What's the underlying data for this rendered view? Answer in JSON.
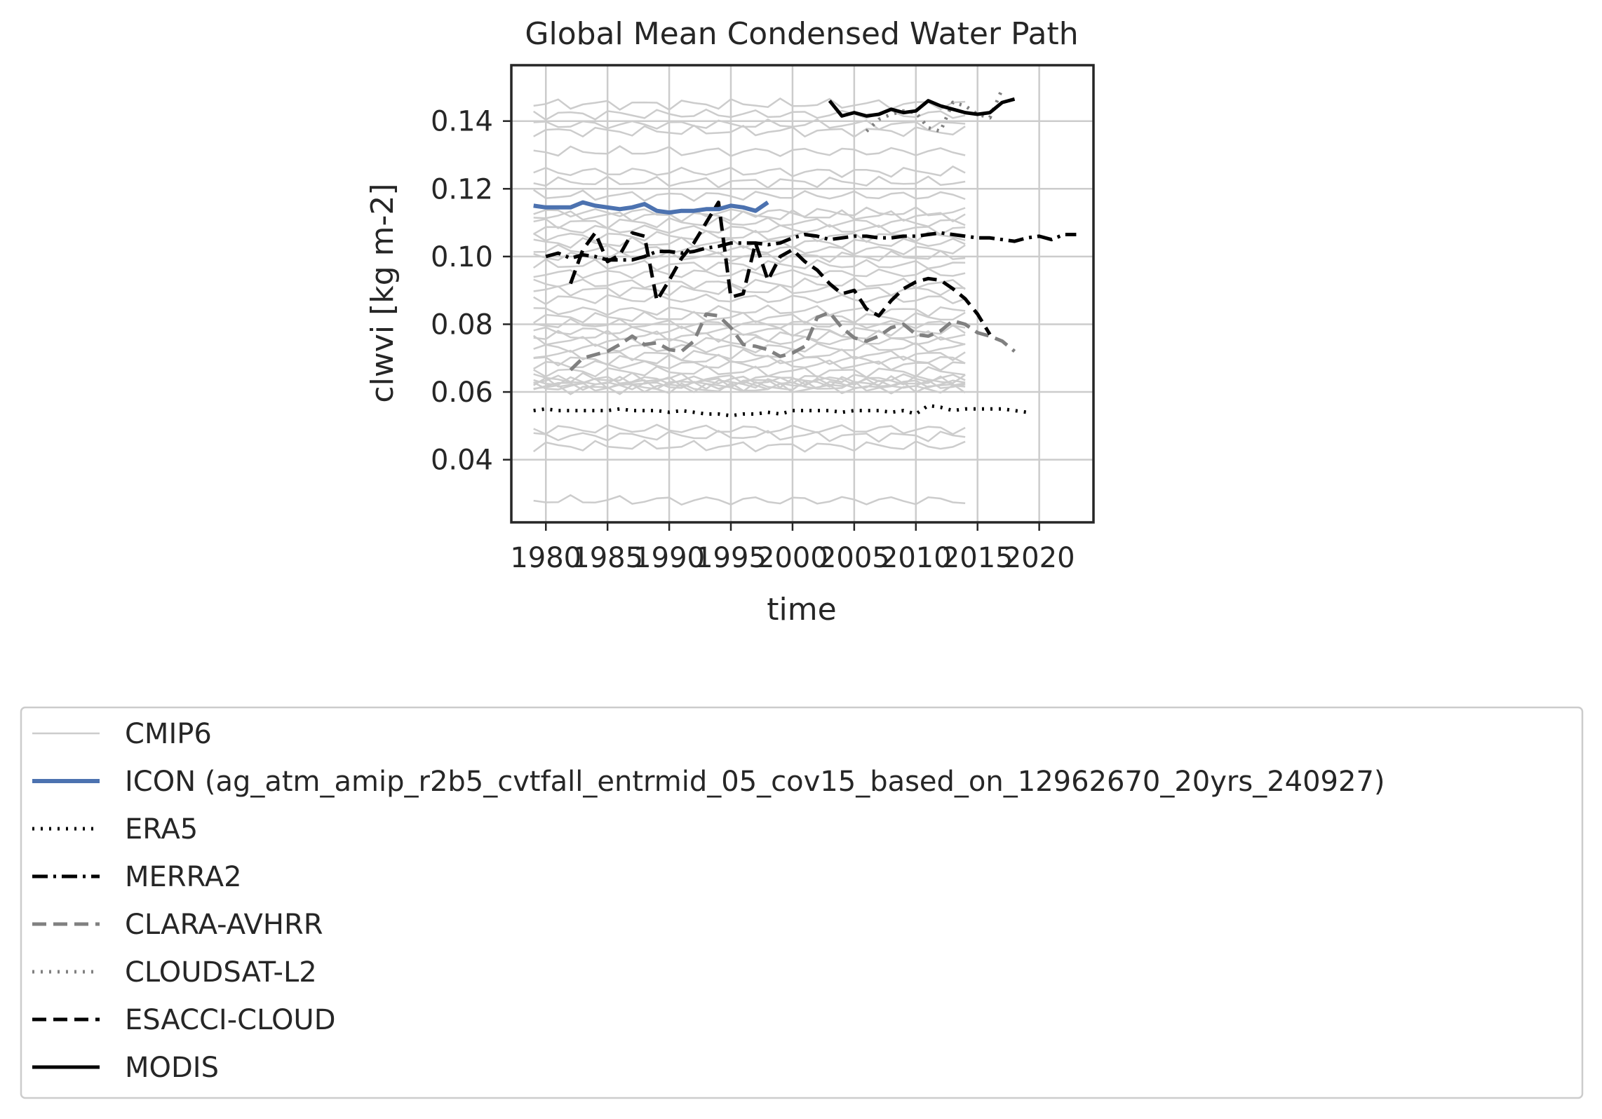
{
  "chart_data": {
    "type": "line",
    "title": "Global Mean Condensed Water Path",
    "xlabel": "time",
    "ylabel": "clwvi [kg m-2]",
    "xlim": [
      1977.2,
      2024.4
    ],
    "ylim": [
      0.0215,
      0.1565
    ],
    "xticks": [
      1980,
      1985,
      1990,
      1995,
      2000,
      2005,
      2010,
      2015,
      2020
    ],
    "xtick_labels": [
      "1980",
      "1985",
      "1990",
      "1995",
      "2000",
      "2005",
      "2010",
      "2015",
      "2020"
    ],
    "yticks": [
      0.04,
      0.06,
      0.08,
      0.1,
      0.12,
      0.14
    ],
    "ytick_labels": [
      "0.04",
      "0.06",
      "0.08",
      "0.10",
      "0.12",
      "0.14"
    ],
    "grid": true,
    "legend_position": "below",
    "cmip6_color": "#cccccc",
    "cmip6_years": [
      1979,
      2014
    ],
    "cmip6_levels": [
      0.028,
      0.044,
      0.047,
      0.049,
      0.061,
      0.0615,
      0.062,
      0.0625,
      0.063,
      0.0635,
      0.064,
      0.066,
      0.068,
      0.0695,
      0.071,
      0.073,
      0.075,
      0.0765,
      0.078,
      0.08,
      0.082,
      0.084,
      0.0875,
      0.09,
      0.092,
      0.095,
      0.0975,
      0.1,
      0.102,
      0.104,
      0.106,
      0.108,
      0.11,
      0.112,
      0.113,
      0.118,
      0.122,
      0.125,
      0.131,
      0.137,
      0.139,
      0.142,
      0.145
    ],
    "series": [
      {
        "name": "CMIP6",
        "legend_key": "cmip6",
        "color": "#cccccc",
        "width": 2.5,
        "dash": "",
        "x": [],
        "y": []
      },
      {
        "name": "ICON (ag_atm_amip_r2b5_cvtfall_entrmid_05_cov15_based_on_12962670_20yrs_240927)",
        "legend_key": "icon",
        "color": "#4c72b0",
        "width": 6,
        "dash": "",
        "x": [
          1979,
          1980,
          1981,
          1982,
          1983,
          1984,
          1985,
          1986,
          1987,
          1988,
          1989,
          1990,
          1991,
          1992,
          1993,
          1994,
          1995,
          1996,
          1997,
          1998
        ],
        "y": [
          0.115,
          0.1145,
          0.1145,
          0.1145,
          0.116,
          0.115,
          0.1145,
          0.114,
          0.1145,
          0.1155,
          0.1135,
          0.113,
          0.1135,
          0.1135,
          0.114,
          0.114,
          0.115,
          0.1145,
          0.1135,
          0.116
        ]
      },
      {
        "name": "ERA5",
        "legend_key": "era5",
        "color": "#000000",
        "width": 5,
        "dash": "3 9",
        "x": [
          1979,
          1980,
          1981,
          1982,
          1983,
          1984,
          1985,
          1986,
          1987,
          1988,
          1989,
          1990,
          1991,
          1992,
          1993,
          1994,
          1995,
          1996,
          1997,
          1998,
          1999,
          2000,
          2001,
          2002,
          2003,
          2004,
          2005,
          2006,
          2007,
          2008,
          2009,
          2010,
          2011,
          2012,
          2013,
          2014,
          2015,
          2016,
          2017,
          2018,
          2019
        ],
        "y": [
          0.0545,
          0.055,
          0.0545,
          0.0545,
          0.0545,
          0.0545,
          0.0545,
          0.055,
          0.0545,
          0.0545,
          0.0545,
          0.054,
          0.0545,
          0.054,
          0.0535,
          0.0535,
          0.053,
          0.0535,
          0.0535,
          0.054,
          0.0535,
          0.0545,
          0.0545,
          0.0545,
          0.0545,
          0.054,
          0.0545,
          0.0545,
          0.0545,
          0.054,
          0.0545,
          0.0535,
          0.056,
          0.0555,
          0.0545,
          0.055,
          0.055,
          0.055,
          0.055,
          0.0545,
          0.054
        ]
      },
      {
        "name": "MERRA2",
        "legend_key": "merra2",
        "color": "#000000",
        "width": 5,
        "dash": "22 8 4 8",
        "x": [
          1980,
          1981,
          1982,
          1983,
          1984,
          1985,
          1986,
          1987,
          1988,
          1989,
          1990,
          1991,
          1992,
          1993,
          1994,
          1995,
          1996,
          1997,
          1998,
          1999,
          2000,
          2001,
          2002,
          2003,
          2004,
          2005,
          2006,
          2007,
          2008,
          2009,
          2010,
          2011,
          2012,
          2013,
          2014,
          2015,
          2016,
          2017,
          2018,
          2019,
          2020,
          2021,
          2022,
          2023
        ],
        "y": [
          0.1,
          0.101,
          0.0995,
          0.1005,
          0.1,
          0.099,
          0.099,
          0.099,
          0.1,
          0.1015,
          0.1015,
          0.101,
          0.1015,
          0.1025,
          0.103,
          0.104,
          0.104,
          0.104,
          0.1035,
          0.104,
          0.1055,
          0.1065,
          0.106,
          0.105,
          0.1055,
          0.106,
          0.106,
          0.1055,
          0.1055,
          0.106,
          0.106,
          0.1065,
          0.107,
          0.1065,
          0.106,
          0.1055,
          0.1055,
          0.105,
          0.1045,
          0.1055,
          0.106,
          0.105,
          0.1065,
          0.1065
        ]
      },
      {
        "name": "CLARA-AVHRR",
        "legend_key": "clara",
        "color": "#808080",
        "width": 5,
        "dash": "20 10",
        "x": [
          1982,
          1983,
          1984,
          1985,
          1986,
          1987,
          1988,
          1989,
          1990,
          1991,
          1992,
          1993,
          1994,
          1995,
          1996,
          1997,
          1998,
          1999,
          2000,
          2001,
          2002,
          2003,
          2004,
          2005,
          2006,
          2007,
          2008,
          2009,
          2010,
          2011,
          2012,
          2013,
          2014,
          2015,
          2016,
          2017,
          2018
        ],
        "y": [
          0.0665,
          0.07,
          0.071,
          0.072,
          0.074,
          0.0765,
          0.074,
          0.0745,
          0.0725,
          0.072,
          0.075,
          0.083,
          0.0825,
          0.079,
          0.074,
          0.0735,
          0.0725,
          0.0705,
          0.0715,
          0.0735,
          0.082,
          0.0835,
          0.079,
          0.076,
          0.075,
          0.0765,
          0.079,
          0.08,
          0.077,
          0.0765,
          0.078,
          0.081,
          0.08,
          0.0775,
          0.0765,
          0.075,
          0.072
        ]
      },
      {
        "name": "CLOUDSAT-L2",
        "legend_key": "cloudsat",
        "color": "#808080",
        "width": 5,
        "dash": "3 9",
        "x": [
          2006,
          2007,
          2008,
          2009,
          2010,
          2011,
          2012,
          2013,
          2014,
          2015,
          2016,
          2017
        ],
        "y": [
          0.137,
          0.1405,
          0.142,
          0.143,
          0.1425,
          0.138,
          0.137,
          0.1455,
          0.1445,
          0.142,
          0.141,
          0.1495
        ]
      },
      {
        "name": "ESACCI-CLOUD",
        "legend_key": "esacci",
        "color": "#000000",
        "width": 5,
        "dash": "20 10",
        "x": [
          1982,
          1983,
          1984,
          1985,
          1986,
          1987,
          1988,
          1989,
          1990,
          1991,
          1992,
          1993,
          1994,
          1995,
          1996,
          1997,
          1998,
          1999,
          2000,
          2001,
          2002,
          2003,
          2004,
          2005,
          2006,
          2007,
          2008,
          2009,
          2010,
          2011,
          2012,
          2013,
          2014,
          2015,
          2016
        ],
        "y": [
          0.092,
          0.102,
          0.107,
          0.0985,
          0.1005,
          0.107,
          0.106,
          0.087,
          0.093,
          0.0995,
          0.104,
          0.11,
          0.116,
          0.088,
          0.089,
          0.104,
          0.093,
          0.1,
          0.102,
          0.0985,
          0.096,
          0.092,
          0.089,
          0.09,
          0.0845,
          0.0825,
          0.087,
          0.0905,
          0.0925,
          0.0935,
          0.093,
          0.0905,
          0.0875,
          0.083,
          0.077
        ]
      },
      {
        "name": "MODIS",
        "legend_key": "modis",
        "color": "#000000",
        "width": 5,
        "dash": "",
        "x": [
          2003,
          2004,
          2005,
          2006,
          2007,
          2008,
          2009,
          2010,
          2011,
          2012,
          2013,
          2014,
          2015,
          2016,
          2017,
          2018
        ],
        "y": [
          0.146,
          0.1415,
          0.1425,
          0.1415,
          0.142,
          0.1435,
          0.1425,
          0.143,
          0.146,
          0.1445,
          0.1435,
          0.1425,
          0.142,
          0.1425,
          0.1455,
          0.1465
        ]
      }
    ]
  }
}
